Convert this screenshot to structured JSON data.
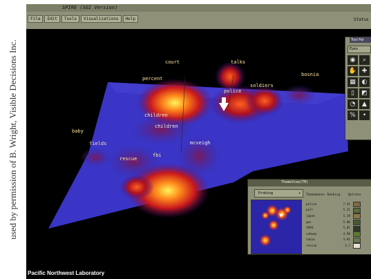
{
  "credit": "used by permission of B. Wright, Visible Decisions Inc.",
  "window": {
    "title": "SPIRE  (SGI Version)",
    "status_label": "Status"
  },
  "menu": [
    "File",
    "Edit",
    "Tools",
    "Visualizations",
    "Help"
  ],
  "tool_palette": {
    "title": "Tool Pal",
    "dropdown": "Eyes",
    "tool_icons": [
      "eye-icon",
      "zoom-icon",
      "hand-icon",
      "plus-icon",
      "scale-icon",
      "circles-icon",
      "box-icon",
      "cube-icon",
      "piechart-icon",
      "filter-icon",
      "percent-icon",
      "pin-icon"
    ]
  },
  "landscape_labels": [
    {
      "text": "court"
    },
    {
      "text": "talks"
    },
    {
      "text": "percent"
    },
    {
      "text": "soldiers"
    },
    {
      "text": "bosnia"
    },
    {
      "text": "police"
    },
    {
      "text": "children"
    },
    {
      "text": "children"
    },
    {
      "text": "baby"
    },
    {
      "text": "fields"
    },
    {
      "text": "mcveigh"
    },
    {
      "text": "rescue"
    },
    {
      "text": "fbi"
    }
  ],
  "footer": "Pacific Northwest Laboratory",
  "subwindow": {
    "title": "ThemeView(TM)",
    "dropdown": "Probing",
    "columns": [
      "Thememanes",
      "Ranking",
      "Options"
    ],
    "rows": [
      {
        "term": "police",
        "rank": "7.41",
        "color": "#7d6a40"
      },
      {
        "term": "pull",
        "rank": "5.21",
        "color": "#5b6a3a"
      },
      {
        "term": "japan",
        "rank": "5.19",
        "color": "#8a7a44"
      },
      {
        "term": "gas",
        "rank": "5.06",
        "color": "#4a5a30"
      },
      {
        "term": "1994",
        "rank": "5.01",
        "color": "#2e3a24"
      },
      {
        "term": "subway",
        "rank": "4.90",
        "color": "#5c7a2e"
      },
      {
        "term": "tokyo",
        "rank": "3.81",
        "color": "#6a7a50"
      },
      {
        "term": "rescue",
        "rank": "3.7",
        "color": "#e8e4d0"
      }
    ]
  }
}
